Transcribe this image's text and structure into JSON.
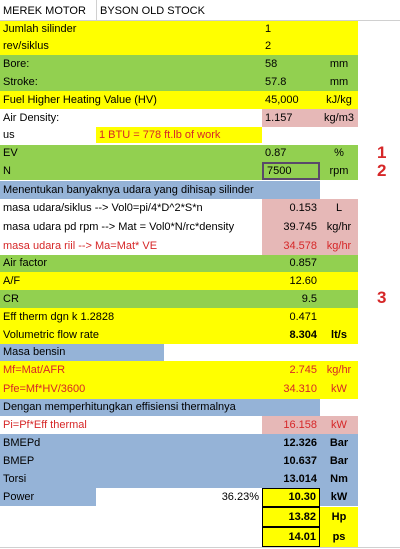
{
  "colors": {
    "yellow": "#ffff00",
    "green": "#92d050",
    "blue": "#95b3d7",
    "pink": "#e6b8b7",
    "red_text": "#d62728",
    "white": "#ffffff"
  },
  "header": {
    "a": "MEREK MOTOR",
    "b": "BYSON OLD STOCK"
  },
  "rows": {
    "jumlah": {
      "label": "Jumlah silinder",
      "value": "1"
    },
    "rev": {
      "label": "rev/siklus",
      "value": "2"
    },
    "bore": {
      "label": "Bore:",
      "value": "58",
      "unit": "mm"
    },
    "stroke": {
      "label": "Stroke:",
      "value": "57.8",
      "unit": "mm"
    },
    "fhv": {
      "label": "Fuel Higher Heating Value (HV)",
      "value": "45,000",
      "unit": "kJ/kg"
    },
    "air_density": {
      "label": "Air Density:",
      "value": "1.157",
      "unit": "kg/m3"
    },
    "btu": {
      "prefix": "us",
      "note": "1 BTU = 778 ft.lb of work"
    },
    "ev": {
      "label": "EV",
      "value": "0.87",
      "unit": "%"
    },
    "n": {
      "label": "N",
      "value": "7500",
      "unit": "rpm"
    },
    "sec1": {
      "label": "Menentukan banyaknya udara yang dihisap silinder"
    },
    "mu_siklus": {
      "label": "masa udara/siklus --> Vol0=pi/4*D^2*S*n",
      "value": "0.153",
      "unit": "L"
    },
    "mu_rpm": {
      "label": "masa udara pd rpm --> Mat = Vol0*N/rc*density",
      "value": "39.745",
      "unit": "kg/hr"
    },
    "mu_riil": {
      "label": "masa udara riil --> Ma=Mat* VE",
      "value": "34.578",
      "unit": "kg/hr"
    },
    "air_factor": {
      "label": "Air factor",
      "value": "0.857"
    },
    "af": {
      "label": "A/F",
      "value": "12.60"
    },
    "cr": {
      "label": "CR",
      "value": "9.5"
    },
    "eff": {
      "label": "Eff therm  dgn k  1.2828",
      "value": "0.471"
    },
    "vfr": {
      "label": "Volumetric flow rate",
      "value": "8.304",
      "unit": "lt/s"
    },
    "sec2": {
      "label": "Masa bensin"
    },
    "mf": {
      "label": "Mf=Mat/AFR",
      "value": "2.745",
      "unit": "kg/hr"
    },
    "pfe": {
      "label": "Pfe=Mf*HV/3600",
      "value": "34.310",
      "unit": "kW"
    },
    "sec3": {
      "label": "Dengan memperhitungkan effisiensi thermalnya"
    },
    "pi": {
      "label": "Pi=Pf*Eff thermal",
      "value": "16.158",
      "unit": "kW"
    },
    "bmepd": {
      "label": "BMEPd",
      "value": "12.326",
      "unit": "Bar"
    },
    "bmep": {
      "label": "BMEP",
      "value": "10.637",
      "unit": "Bar"
    },
    "torsi": {
      "label": "Torsi",
      "value": "13.014",
      "unit": "Nm"
    },
    "power": {
      "label": "Power",
      "pct": "36.23%",
      "value": "10.30",
      "unit": "kW"
    },
    "hp": {
      "value": "13.82",
      "unit": "Hp"
    },
    "ps": {
      "value": "14.01",
      "unit": "ps"
    }
  },
  "markers": {
    "m1": "1",
    "m2": "2",
    "m3": "3"
  }
}
